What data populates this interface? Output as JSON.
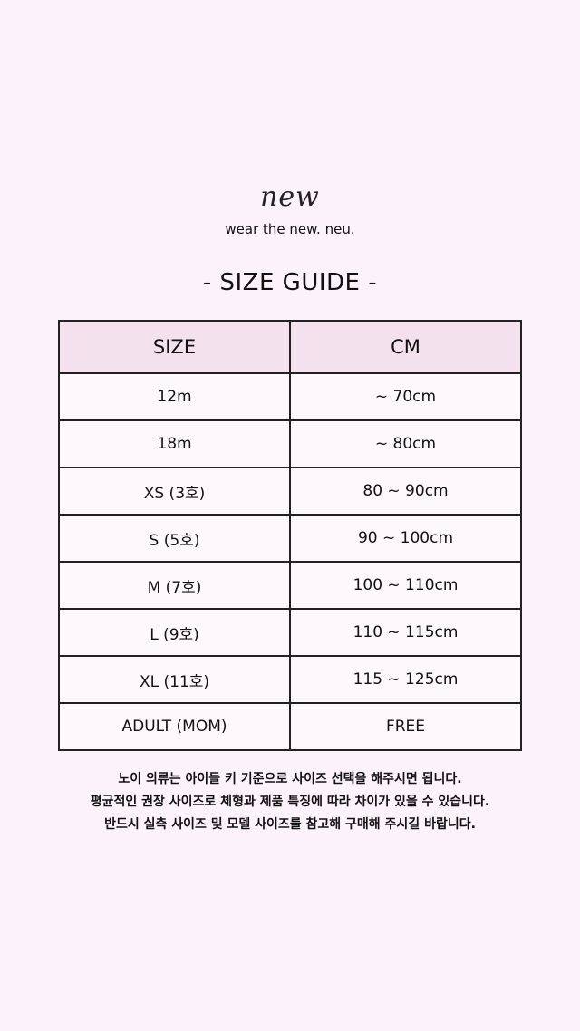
{
  "logo": "new",
  "tagline": "wear the new. neu.",
  "title": "- SIZE GUIDE -",
  "table": {
    "headers": [
      "SIZE",
      "CM"
    ],
    "rows": [
      [
        "12m",
        "~ 70cm"
      ],
      [
        "18m",
        "~ 80cm"
      ],
      [
        "XS (3호)",
        "80 ~ 90cm"
      ],
      [
        "S (5호)",
        "90 ~ 100cm"
      ],
      [
        "M (7호)",
        "100 ~ 110cm"
      ],
      [
        "L (9호)",
        "110 ~ 115cm"
      ],
      [
        "XL (11호)",
        "115 ~ 125cm"
      ],
      [
        "ADULT (MOM)",
        "FREE"
      ]
    ]
  },
  "notes": [
    "노이 의류는 아이들 키 기준으로 사이즈 선택을 해주시면 됩니다.",
    "평균적인 권장 사이즈로 체형과 제품 특징에 따라 차이가 있을 수 있습니다.",
    "반드시 실측 사이즈 및 모델 사이즈를 참고해 구매해 주시길 바랍니다."
  ],
  "colors": {
    "background": "#fcf3fa",
    "header": "#f3e1ed"
  }
}
